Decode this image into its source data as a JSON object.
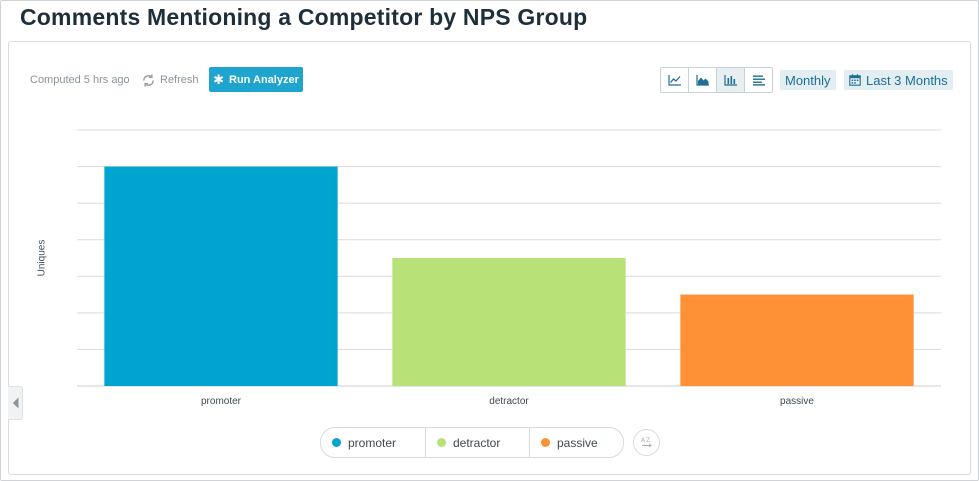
{
  "title": "Comments Mentioning a Competitor by NPS Group",
  "toolbar": {
    "computed_text": "Computed 5 hrs ago",
    "refresh_label": "Refresh",
    "run_label": "Run Analyzer",
    "chart_type_buttons": [
      "line-chart-icon",
      "area-chart-icon",
      "bar-chart-icon",
      "list-icon"
    ],
    "active_chart_type": "bar-chart-icon",
    "interval": "Monthly",
    "range": "Last 3 Months"
  },
  "colors": {
    "accent": "#1da5cf",
    "grid": "#d8dcdf"
  },
  "chart_data": {
    "type": "bar",
    "ylabel": "Uniques",
    "xlabel": "",
    "ylim": [
      0,
      7
    ],
    "grid": true,
    "y_tick_labels_shown": false,
    "categories": [
      "promoter",
      "detractor",
      "passive"
    ],
    "values": [
      6,
      3.5,
      2.5
    ],
    "colors": [
      "#00a5cf",
      "#b8e178",
      "#fe9035"
    ],
    "legend": {
      "placement": "bottom",
      "entries": [
        "promoter",
        "detractor",
        "passive"
      ]
    }
  }
}
